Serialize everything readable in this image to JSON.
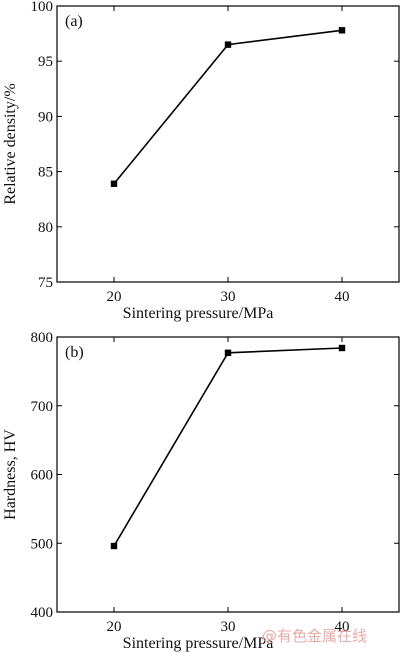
{
  "chart_data": [
    {
      "type": "line",
      "panel_label": "(a)",
      "title": "",
      "xlabel": "Sintering pressure/MPa",
      "ylabel": "Relative density/%",
      "x": [
        20,
        30,
        40
      ],
      "series": [
        {
          "values": [
            83.9,
            96.5,
            97.8
          ]
        }
      ],
      "xlim": [
        15,
        45
      ],
      "ylim": [
        75,
        100
      ],
      "xticks": [
        20,
        30,
        40
      ],
      "yticks": [
        75,
        80,
        85,
        90,
        95,
        100
      ],
      "grid": false,
      "marker": "square",
      "color": "#000000"
    },
    {
      "type": "line",
      "panel_label": "(b)",
      "title": "",
      "xlabel": "Sintering pressure/MPa",
      "ylabel": "Hardness, HV",
      "x": [
        20,
        30,
        40
      ],
      "series": [
        {
          "values": [
            496,
            777,
            784
          ]
        }
      ],
      "xlim": [
        15,
        45
      ],
      "ylim": [
        400,
        800
      ],
      "xticks": [
        20,
        30,
        40
      ],
      "yticks": [
        400,
        500,
        600,
        700,
        800
      ],
      "grid": false,
      "marker": "square",
      "color": "#000000"
    }
  ],
  "watermark": "@有色金属在线"
}
